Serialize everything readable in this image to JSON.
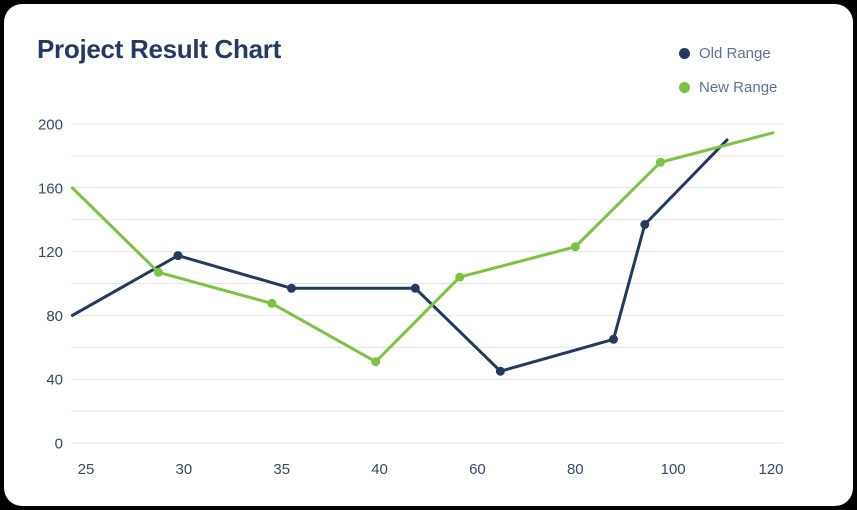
{
  "card": {
    "title": "Project Result Chart"
  },
  "legend": {
    "items": [
      {
        "label": "Old Range",
        "color": "#233a5e"
      },
      {
        "label": "New Range",
        "color": "#7cc342"
      }
    ]
  },
  "chart_data": {
    "type": "line",
    "title": "Project Result Chart",
    "x_ticks": [
      25,
      30,
      35,
      40,
      60,
      80,
      100,
      120
    ],
    "y_ticks": [
      0,
      40,
      80,
      120,
      160,
      200
    ],
    "ylim": [
      0,
      200
    ],
    "y_grid_step": 20,
    "grid": true,
    "legend_position": "top-right",
    "series": [
      {
        "name": "Old Range",
        "color": "#233a5e",
        "points": [
          [
            24.3,
            80
          ],
          [
            29.7,
            117.5
          ],
          [
            35.5,
            97
          ],
          [
            47.3,
            97
          ],
          [
            64.7,
            45
          ],
          [
            87.8,
            65
          ],
          [
            94.2,
            137
          ],
          [
            111,
            190
          ]
        ]
      },
      {
        "name": "New Range",
        "color": "#7cc342",
        "points": [
          [
            24.3,
            160
          ],
          [
            28.7,
            107
          ],
          [
            34.5,
            87.5
          ],
          [
            39.8,
            51
          ],
          [
            56.4,
            104
          ],
          [
            80,
            123
          ],
          [
            97.4,
            176
          ],
          [
            120.4,
            194.5
          ]
        ]
      }
    ]
  },
  "colors": {
    "frame": "#000000",
    "card_bg": "#ffffff",
    "title": "#253a63",
    "axis_label": "#36486b",
    "legend_text": "#5d7195",
    "grid": "#e4e4e4"
  }
}
